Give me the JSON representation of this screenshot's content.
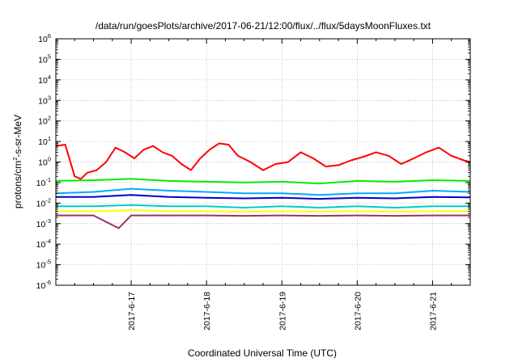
{
  "chart_data": {
    "type": "line",
    "title": "/data/run/goesPlots/archive/2017-06-21/12:00/flux/../flux/5daysMoonFluxes.txt",
    "xlabel": "Coordinated Universal Time (UTC)",
    "ylabel_parts": [
      "protons/cm",
      "2",
      "-s-sr-MeV"
    ],
    "x_range": [
      "2017-06-16 00:00",
      "2017-06-21 12:00"
    ],
    "x_ticks": [
      "2017-6-17",
      "2017-6-18",
      "2017-6-19",
      "2017-6-20",
      "2017-6-21"
    ],
    "x_tick_dates": [
      "2017-06-17",
      "2017-06-18",
      "2017-06-19",
      "2017-06-20",
      "2017-06-21"
    ],
    "y_scale": "log",
    "y_ticks": [
      {
        "base": "10",
        "exp": "-6"
      },
      {
        "base": "10",
        "exp": "-5"
      },
      {
        "base": "10",
        "exp": "-4"
      },
      {
        "base": "10",
        "exp": "-3"
      },
      {
        "base": "10",
        "exp": "-2"
      },
      {
        "base": "10",
        "exp": "-1"
      },
      {
        "base": "10",
        "exp": "0"
      },
      {
        "base": "10",
        "exp": "1"
      },
      {
        "base": "10",
        "exp": "2"
      },
      {
        "base": "10",
        "exp": "3"
      },
      {
        "base": "10",
        "exp": "4"
      },
      {
        "base": "10",
        "exp": "5"
      },
      {
        "base": "10",
        "exp": "6"
      }
    ],
    "y_tick_values": [
      1e-06,
      1e-05,
      0.0001,
      0.001,
      0.01,
      0.1,
      1,
      10,
      100,
      1000,
      10000,
      100000,
      1000000
    ],
    "grid": true,
    "series": [
      {
        "color": "#ff0000",
        "x": [
          "2017-06-16 00:00",
          "2017-06-16 03:00",
          "2017-06-16 06:00",
          "2017-06-16 08:00",
          "2017-06-16 10:00",
          "2017-06-16 13:00",
          "2017-06-16 16:00",
          "2017-06-16 19:00",
          "2017-06-16 22:00",
          "2017-06-17 01:00",
          "2017-06-17 04:00",
          "2017-06-17 07:00",
          "2017-06-17 10:00",
          "2017-06-17 13:00",
          "2017-06-17 16:00",
          "2017-06-17 19:00",
          "2017-06-17 22:00",
          "2017-06-18 01:00",
          "2017-06-18 04:00",
          "2017-06-18 07:00",
          "2017-06-18 10:00",
          "2017-06-18 14:00",
          "2017-06-18 18:00",
          "2017-06-18 22:00",
          "2017-06-19 02:00",
          "2017-06-19 06:00",
          "2017-06-19 10:00",
          "2017-06-19 14:00",
          "2017-06-19 18:00",
          "2017-06-19 22:00",
          "2017-06-20 02:00",
          "2017-06-20 06:00",
          "2017-06-20 10:00",
          "2017-06-20 14:00",
          "2017-06-20 18:00",
          "2017-06-20 22:00",
          "2017-06-21 02:00",
          "2017-06-21 06:00",
          "2017-06-21 10:00",
          "2017-06-21 12:00"
        ],
        "y": [
          6,
          7,
          0.2,
          0.15,
          0.3,
          0.4,
          1,
          5,
          3,
          1.5,
          4,
          6,
          3,
          2,
          0.8,
          0.4,
          1.5,
          4,
          8,
          7,
          2,
          1,
          0.4,
          0.8,
          1,
          3,
          1.5,
          0.6,
          0.7,
          1.2,
          1.8,
          3,
          2,
          0.8,
          1.5,
          3,
          5,
          2,
          1.2,
          1
        ]
      },
      {
        "color": "#00ee00",
        "x": [
          "2017-06-16 00:00",
          "2017-06-16 12:00",
          "2017-06-17 00:00",
          "2017-06-17 12:00",
          "2017-06-18 00:00",
          "2017-06-18 12:00",
          "2017-06-19 00:00",
          "2017-06-19 12:00",
          "2017-06-20 00:00",
          "2017-06-20 12:00",
          "2017-06-21 00:00",
          "2017-06-21 12:00"
        ],
        "y": [
          0.12,
          0.13,
          0.15,
          0.12,
          0.11,
          0.1,
          0.11,
          0.09,
          0.12,
          0.11,
          0.13,
          0.12
        ]
      },
      {
        "color": "#00aaff",
        "x": [
          "2017-06-16 00:00",
          "2017-06-16 12:00",
          "2017-06-17 00:00",
          "2017-06-17 12:00",
          "2017-06-18 00:00",
          "2017-06-18 12:00",
          "2017-06-19 00:00",
          "2017-06-19 12:00",
          "2017-06-20 00:00",
          "2017-06-20 12:00",
          "2017-06-21 00:00",
          "2017-06-21 12:00"
        ],
        "y": [
          0.03,
          0.035,
          0.05,
          0.04,
          0.035,
          0.03,
          0.03,
          0.025,
          0.03,
          0.03,
          0.04,
          0.035
        ]
      },
      {
        "color": "#0000cc",
        "x": [
          "2017-06-16 00:00",
          "2017-06-16 12:00",
          "2017-06-17 00:00",
          "2017-06-17 12:00",
          "2017-06-18 00:00",
          "2017-06-18 12:00",
          "2017-06-19 00:00",
          "2017-06-19 12:00",
          "2017-06-20 00:00",
          "2017-06-20 12:00",
          "2017-06-21 00:00",
          "2017-06-21 12:00"
        ],
        "y": [
          0.02,
          0.02,
          0.025,
          0.02,
          0.018,
          0.017,
          0.018,
          0.016,
          0.018,
          0.017,
          0.02,
          0.019
        ]
      },
      {
        "color": "#00cccc",
        "x": [
          "2017-06-16 00:00",
          "2017-06-16 12:00",
          "2017-06-17 00:00",
          "2017-06-17 12:00",
          "2017-06-18 00:00",
          "2017-06-18 12:00",
          "2017-06-19 00:00",
          "2017-06-19 12:00",
          "2017-06-20 00:00",
          "2017-06-20 12:00",
          "2017-06-21 00:00",
          "2017-06-21 12:00"
        ],
        "y": [
          0.007,
          0.007,
          0.008,
          0.007,
          0.007,
          0.006,
          0.007,
          0.006,
          0.007,
          0.006,
          0.007,
          0.007
        ]
      },
      {
        "color": "#ffff00",
        "x": [
          "2017-06-16 00:00",
          "2017-06-16 12:00",
          "2017-06-17 00:00",
          "2017-06-17 12:00",
          "2017-06-18 00:00",
          "2017-06-18 12:00",
          "2017-06-19 00:00",
          "2017-06-19 12:00",
          "2017-06-20 00:00",
          "2017-06-20 12:00",
          "2017-06-21 00:00",
          "2017-06-21 12:00"
        ],
        "y": [
          0.004,
          0.004,
          0.0045,
          0.004,
          0.004,
          0.0038,
          0.004,
          0.0038,
          0.004,
          0.0038,
          0.004,
          0.004
        ]
      },
      {
        "color": "#993366",
        "x": [
          "2017-06-16 00:00",
          "2017-06-16 12:00",
          "2017-06-16 20:00",
          "2017-06-17 00:00",
          "2017-06-17 12:00",
          "2017-06-18 00:00",
          "2017-06-18 12:00",
          "2017-06-19 00:00",
          "2017-06-19 12:00",
          "2017-06-20 00:00",
          "2017-06-20 12:00",
          "2017-06-21 00:00",
          "2017-06-21 12:00"
        ],
        "y": [
          0.0025,
          0.0025,
          0.0006,
          0.0025,
          0.0025,
          0.0025,
          0.0024,
          0.0025,
          0.0024,
          0.0025,
          0.0024,
          0.0025,
          0.0025
        ]
      }
    ]
  }
}
